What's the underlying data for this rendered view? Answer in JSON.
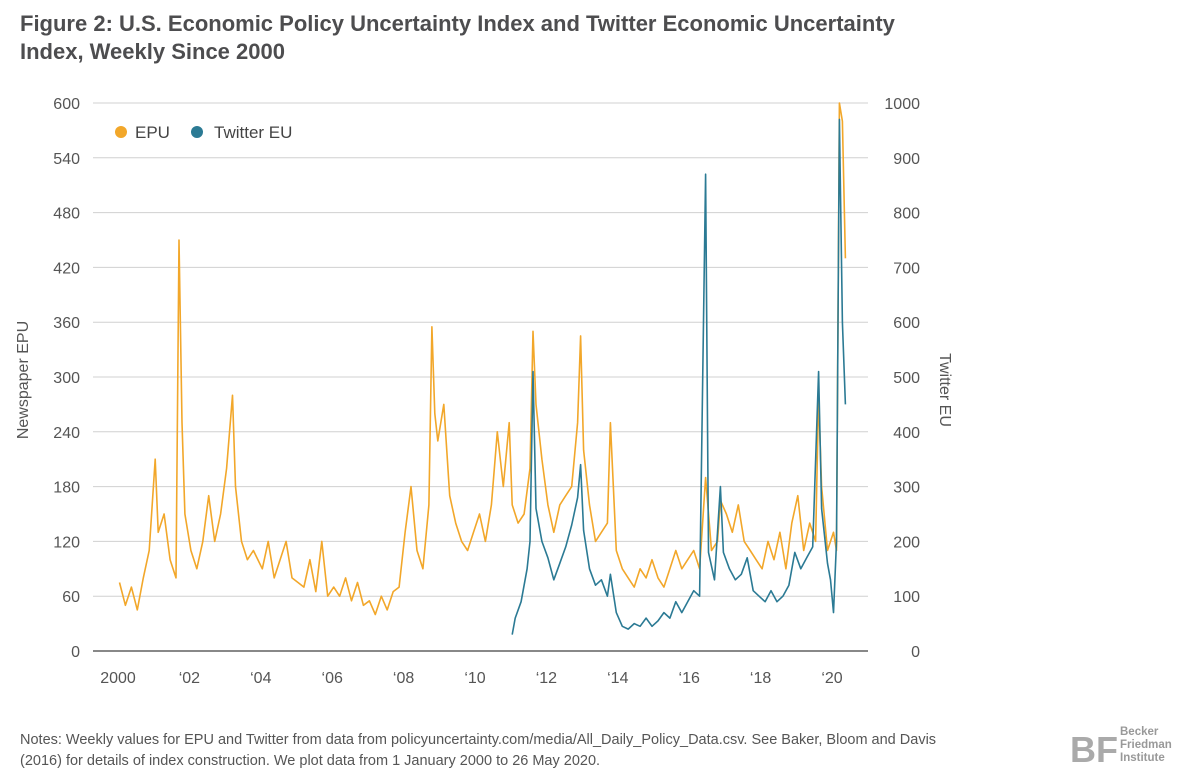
{
  "title": "Figure 2: U.S. Economic Policy Uncertainty Index and Twitter Economic Uncertainty Index, Weekly Since 2000",
  "notes": "Notes: Weekly values for EPU and Twitter from data from policyuncertainty.com/media/All_Daily_Policy_Data.csv. See Baker, Bloom and Davis (2016) for details of index construction. We plot data from 1 January 2000 to 26 May 2020.",
  "logo": {
    "line1": "Becker",
    "line2": "Friedman",
    "line3": "Institute"
  },
  "chart_data": {
    "type": "line",
    "title": "Figure 2: U.S. Economic Policy Uncertainty Index and Twitter Economic Uncertainty Index, Weekly Since 2000",
    "ylabel": "Newspaper EPU",
    "y2label": "Twitter EU",
    "ylim": [
      0,
      600
    ],
    "y2lim": [
      0,
      1000
    ],
    "yticks": [
      "0",
      "60",
      "120",
      "180",
      "240",
      "300",
      "360",
      "420",
      "480",
      "540",
      "600"
    ],
    "y2ticks": [
      "0",
      "100",
      "200",
      "300",
      "400",
      "500",
      "600",
      "700",
      "800",
      "900",
      "1000"
    ],
    "xticks": [
      {
        "year": 2000,
        "label": "2000"
      },
      {
        "year": 2002,
        "label": "‘02"
      },
      {
        "year": 2004,
        "label": "‘04"
      },
      {
        "year": 2006,
        "label": "‘06"
      },
      {
        "year": 2008,
        "label": "‘08"
      },
      {
        "year": 2010,
        "label": "‘10"
      },
      {
        "year": 2012,
        "label": "‘12"
      },
      {
        "year": 2014,
        "label": "‘14"
      },
      {
        "year": 2016,
        "label": "‘16"
      },
      {
        "year": 2018,
        "label": "‘18"
      },
      {
        "year": 2020,
        "label": "‘20"
      }
    ],
    "grid": true,
    "legend": "top-left",
    "colors": {
      "EPU": "#f2a72a",
      "Twitter EU": "#2b7a94"
    },
    "series": [
      {
        "name": "EPU",
        "axis": "left",
        "points": [
          [
            "2000-01",
            75
          ],
          [
            "2000-03",
            50
          ],
          [
            "2000-05",
            70
          ],
          [
            "2000-07",
            45
          ],
          [
            "2000-09",
            80
          ],
          [
            "2000-11",
            110
          ],
          [
            "2001-01",
            210
          ],
          [
            "2001-02",
            130
          ],
          [
            "2001-04",
            150
          ],
          [
            "2001-06",
            100
          ],
          [
            "2001-08",
            80
          ],
          [
            "2001-09",
            450
          ],
          [
            "2001-10",
            250
          ],
          [
            "2001-11",
            150
          ],
          [
            "2002-01",
            110
          ],
          [
            "2002-03",
            90
          ],
          [
            "2002-05",
            120
          ],
          [
            "2002-07",
            170
          ],
          [
            "2002-09",
            120
          ],
          [
            "2002-11",
            150
          ],
          [
            "2003-01",
            200
          ],
          [
            "2003-03",
            280
          ],
          [
            "2003-04",
            180
          ],
          [
            "2003-06",
            120
          ],
          [
            "2003-08",
            100
          ],
          [
            "2003-10",
            110
          ],
          [
            "2004-01",
            90
          ],
          [
            "2004-03",
            120
          ],
          [
            "2004-05",
            80
          ],
          [
            "2004-07",
            100
          ],
          [
            "2004-09",
            120
          ],
          [
            "2004-11",
            80
          ],
          [
            "2005-01",
            75
          ],
          [
            "2005-03",
            70
          ],
          [
            "2005-05",
            100
          ],
          [
            "2005-07",
            65
          ],
          [
            "2005-09",
            120
          ],
          [
            "2005-11",
            60
          ],
          [
            "2006-01",
            70
          ],
          [
            "2006-03",
            60
          ],
          [
            "2006-05",
            80
          ],
          [
            "2006-07",
            55
          ],
          [
            "2006-09",
            75
          ],
          [
            "2006-11",
            50
          ],
          [
            "2007-01",
            55
          ],
          [
            "2007-03",
            40
          ],
          [
            "2007-05",
            60
          ],
          [
            "2007-07",
            45
          ],
          [
            "2007-09",
            65
          ],
          [
            "2007-11",
            70
          ],
          [
            "2008-01",
            130
          ],
          [
            "2008-03",
            180
          ],
          [
            "2008-05",
            110
          ],
          [
            "2008-07",
            90
          ],
          [
            "2008-09",
            160
          ],
          [
            "2008-10",
            355
          ],
          [
            "2008-11",
            260
          ],
          [
            "2008-12",
            230
          ],
          [
            "2009-02",
            270
          ],
          [
            "2009-04",
            170
          ],
          [
            "2009-06",
            140
          ],
          [
            "2009-08",
            120
          ],
          [
            "2009-10",
            110
          ],
          [
            "2009-12",
            130
          ],
          [
            "2010-02",
            150
          ],
          [
            "2010-04",
            120
          ],
          [
            "2010-06",
            160
          ],
          [
            "2010-08",
            240
          ],
          [
            "2010-10",
            180
          ],
          [
            "2010-12",
            250
          ],
          [
            "2011-01",
            160
          ],
          [
            "2011-03",
            140
          ],
          [
            "2011-05",
            150
          ],
          [
            "2011-07",
            200
          ],
          [
            "2011-08",
            350
          ],
          [
            "2011-09",
            270
          ],
          [
            "2011-11",
            210
          ],
          [
            "2012-01",
            160
          ],
          [
            "2012-03",
            130
          ],
          [
            "2012-05",
            160
          ],
          [
            "2012-07",
            170
          ],
          [
            "2012-09",
            180
          ],
          [
            "2012-11",
            250
          ],
          [
            "2012-12",
            345
          ],
          [
            "2013-01",
            220
          ],
          [
            "2013-03",
            160
          ],
          [
            "2013-05",
            120
          ],
          [
            "2013-07",
            130
          ],
          [
            "2013-09",
            140
          ],
          [
            "2013-10",
            250
          ],
          [
            "2013-12",
            110
          ],
          [
            "2014-02",
            90
          ],
          [
            "2014-04",
            80
          ],
          [
            "2014-06",
            70
          ],
          [
            "2014-08",
            90
          ],
          [
            "2014-10",
            80
          ],
          [
            "2014-12",
            100
          ],
          [
            "2015-02",
            80
          ],
          [
            "2015-04",
            70
          ],
          [
            "2015-06",
            90
          ],
          [
            "2015-08",
            110
          ],
          [
            "2015-10",
            90
          ],
          [
            "2015-12",
            100
          ],
          [
            "2016-02",
            110
          ],
          [
            "2016-04",
            90
          ],
          [
            "2016-06",
            190
          ],
          [
            "2016-08",
            110
          ],
          [
            "2016-10",
            120
          ],
          [
            "2016-11",
            165
          ],
          [
            "2017-01",
            150
          ],
          [
            "2017-03",
            130
          ],
          [
            "2017-05",
            160
          ],
          [
            "2017-07",
            120
          ],
          [
            "2017-09",
            110
          ],
          [
            "2017-11",
            100
          ],
          [
            "2018-01",
            90
          ],
          [
            "2018-03",
            120
          ],
          [
            "2018-05",
            100
          ],
          [
            "2018-07",
            130
          ],
          [
            "2018-09",
            90
          ],
          [
            "2018-11",
            140
          ],
          [
            "2019-01",
            170
          ],
          [
            "2019-03",
            110
          ],
          [
            "2019-05",
            140
          ],
          [
            "2019-07",
            120
          ],
          [
            "2019-08",
            280
          ],
          [
            "2019-09",
            180
          ],
          [
            "2019-11",
            110
          ],
          [
            "2020-01",
            130
          ],
          [
            "2020-02",
            110
          ],
          [
            "2020-03",
            600
          ],
          [
            "2020-04",
            580
          ],
          [
            "2020-05",
            430
          ]
        ]
      },
      {
        "name": "Twitter EU",
        "axis": "right",
        "points": [
          [
            "2011-01",
            30
          ],
          [
            "2011-02",
            60
          ],
          [
            "2011-04",
            90
          ],
          [
            "2011-06",
            150
          ],
          [
            "2011-07",
            200
          ],
          [
            "2011-08",
            510
          ],
          [
            "2011-09",
            260
          ],
          [
            "2011-11",
            200
          ],
          [
            "2012-01",
            170
          ],
          [
            "2012-03",
            130
          ],
          [
            "2012-05",
            160
          ],
          [
            "2012-07",
            190
          ],
          [
            "2012-09",
            230
          ],
          [
            "2012-11",
            280
          ],
          [
            "2012-12",
            340
          ],
          [
            "2013-01",
            220
          ],
          [
            "2013-03",
            150
          ],
          [
            "2013-05",
            120
          ],
          [
            "2013-07",
            130
          ],
          [
            "2013-09",
            100
          ],
          [
            "2013-10",
            140
          ],
          [
            "2013-12",
            70
          ],
          [
            "2014-02",
            45
          ],
          [
            "2014-04",
            40
          ],
          [
            "2014-06",
            50
          ],
          [
            "2014-08",
            45
          ],
          [
            "2014-10",
            60
          ],
          [
            "2014-12",
            45
          ],
          [
            "2015-02",
            55
          ],
          [
            "2015-04",
            70
          ],
          [
            "2015-06",
            60
          ],
          [
            "2015-08",
            90
          ],
          [
            "2015-10",
            70
          ],
          [
            "2015-12",
            90
          ],
          [
            "2016-02",
            110
          ],
          [
            "2016-04",
            100
          ],
          [
            "2016-06",
            870
          ],
          [
            "2016-07",
            180
          ],
          [
            "2016-09",
            130
          ],
          [
            "2016-11",
            300
          ],
          [
            "2016-12",
            180
          ],
          [
            "2017-02",
            150
          ],
          [
            "2017-04",
            130
          ],
          [
            "2017-06",
            140
          ],
          [
            "2017-08",
            170
          ],
          [
            "2017-10",
            110
          ],
          [
            "2017-12",
            100
          ],
          [
            "2018-02",
            90
          ],
          [
            "2018-04",
            110
          ],
          [
            "2018-06",
            90
          ],
          [
            "2018-08",
            100
          ],
          [
            "2018-10",
            120
          ],
          [
            "2018-12",
            180
          ],
          [
            "2019-02",
            150
          ],
          [
            "2019-04",
            170
          ],
          [
            "2019-06",
            190
          ],
          [
            "2019-08",
            510
          ],
          [
            "2019-09",
            260
          ],
          [
            "2019-11",
            160
          ],
          [
            "2019-12",
            130
          ],
          [
            "2020-01",
            70
          ],
          [
            "2020-02",
            200
          ],
          [
            "2020-03",
            970
          ],
          [
            "2020-04",
            600
          ],
          [
            "2020-05",
            450
          ]
        ]
      }
    ]
  }
}
